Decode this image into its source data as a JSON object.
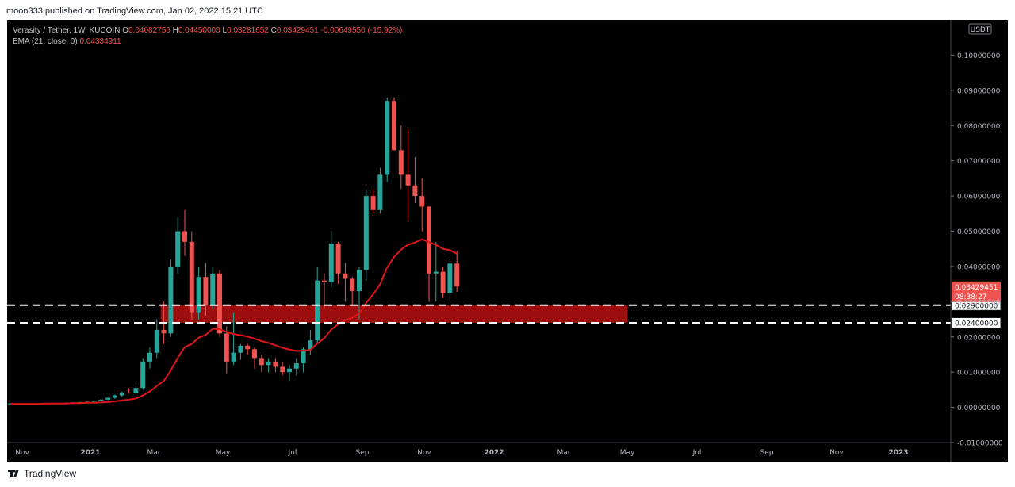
{
  "header": {
    "publisher_line": "moon333 published on TradingView.com, Jan 02, 2022 15:21 UTC"
  },
  "footer": {
    "brand": "TradingView"
  },
  "legend": {
    "symbol": "Verasity / Tether, 1W, KUCOIN",
    "o_label": "O",
    "o_value": "0.04082756",
    "h_label": "H",
    "h_value": "0.04450000",
    "l_label": "L",
    "l_value": "0.03281652",
    "c_label": "C",
    "c_value": "0.03429451",
    "change": "-0.00649550 (-15.92%)",
    "ema_label": "EMA (21, close, 0)",
    "ema_value": "0.04334911"
  },
  "colors": {
    "up": "#26a69a",
    "down": "#ef5350",
    "ema": "#e0151c",
    "zone": "#a50f0f",
    "background": "#000000"
  },
  "chart_data": {
    "type": "candlestick",
    "currency": "USDT",
    "y_axis": {
      "min": -0.01,
      "max": 0.11,
      "ticks": [
        "0.10000000",
        "0.09000000",
        "0.08000000",
        "0.07000000",
        "0.06000000",
        "0.05000000",
        "0.04000000",
        "0.03000000",
        "0.02000000",
        "0.01000000",
        "0.00000000",
        "-0.01000000"
      ]
    },
    "x_axis": {
      "ticks": [
        "Nov",
        "2021",
        "Mar",
        "May",
        "Jul",
        "Sep",
        "Nov",
        "2022",
        "Mar",
        "May",
        "Jul",
        "Sep",
        "Nov",
        "2023"
      ],
      "bold_ticks": [
        "2021",
        "2022",
        "2023"
      ]
    },
    "last_price": {
      "value": "0.03429451",
      "countdown": "08:38:27"
    },
    "levels": [
      {
        "value": 0.029,
        "label": "0.02900000"
      },
      {
        "value": 0.024,
        "label": "0.02400000"
      }
    ],
    "zone": {
      "low": 0.024,
      "high": 0.029,
      "start_week": 22,
      "end_week": 88
    },
    "candles": [
      {
        "o": 0.001,
        "h": 0.0012,
        "l": 0.0009,
        "c": 0.0011
      },
      {
        "o": 0.0011,
        "h": 0.0012,
        "l": 0.0009,
        "c": 0.001
      },
      {
        "o": 0.001,
        "h": 0.0012,
        "l": 0.0009,
        "c": 0.0011
      },
      {
        "o": 0.0011,
        "h": 0.0012,
        "l": 0.001,
        "c": 0.001
      },
      {
        "o": 0.001,
        "h": 0.0012,
        "l": 0.0009,
        "c": 0.0011
      },
      {
        "o": 0.0011,
        "h": 0.0013,
        "l": 0.001,
        "c": 0.0012
      },
      {
        "o": 0.0012,
        "h": 0.0013,
        "l": 0.001,
        "c": 0.0011
      },
      {
        "o": 0.0011,
        "h": 0.0013,
        "l": 0.001,
        "c": 0.0012
      },
      {
        "o": 0.0012,
        "h": 0.0014,
        "l": 0.0011,
        "c": 0.0013
      },
      {
        "o": 0.0013,
        "h": 0.0015,
        "l": 0.0011,
        "c": 0.0014
      },
      {
        "o": 0.0014,
        "h": 0.0016,
        "l": 0.0012,
        "c": 0.0015
      },
      {
        "o": 0.0015,
        "h": 0.0018,
        "l": 0.0013,
        "c": 0.0016
      },
      {
        "o": 0.0016,
        "h": 0.002,
        "l": 0.0014,
        "c": 0.0019
      },
      {
        "o": 0.0019,
        "h": 0.0024,
        "l": 0.0017,
        "c": 0.0022
      },
      {
        "o": 0.0022,
        "h": 0.0028,
        "l": 0.002,
        "c": 0.0027
      },
      {
        "o": 0.0027,
        "h": 0.0036,
        "l": 0.0024,
        "c": 0.0034
      },
      {
        "o": 0.0034,
        "h": 0.0045,
        "l": 0.003,
        "c": 0.0042
      },
      {
        "o": 0.0042,
        "h": 0.0055,
        "l": 0.0038,
        "c": 0.004
      },
      {
        "o": 0.004,
        "h": 0.006,
        "l": 0.0036,
        "c": 0.0055
      },
      {
        "o": 0.0055,
        "h": 0.014,
        "l": 0.005,
        "c": 0.013
      },
      {
        "o": 0.013,
        "h": 0.017,
        "l": 0.011,
        "c": 0.0155
      },
      {
        "o": 0.0155,
        "h": 0.025,
        "l": 0.014,
        "c": 0.022
      },
      {
        "o": 0.022,
        "h": 0.03,
        "l": 0.018,
        "c": 0.021
      },
      {
        "o": 0.021,
        "h": 0.042,
        "l": 0.02,
        "c": 0.04
      },
      {
        "o": 0.04,
        "h": 0.054,
        "l": 0.038,
        "c": 0.05
      },
      {
        "o": 0.05,
        "h": 0.056,
        "l": 0.043,
        "c": 0.047
      },
      {
        "o": 0.047,
        "h": 0.05,
        "l": 0.025,
        "c": 0.027
      },
      {
        "o": 0.027,
        "h": 0.04,
        "l": 0.025,
        "c": 0.037
      },
      {
        "o": 0.037,
        "h": 0.041,
        "l": 0.026,
        "c": 0.029
      },
      {
        "o": 0.029,
        "h": 0.04,
        "l": 0.028,
        "c": 0.038
      },
      {
        "o": 0.038,
        "h": 0.039,
        "l": 0.02,
        "c": 0.021
      },
      {
        "o": 0.021,
        "h": 0.023,
        "l": 0.0095,
        "c": 0.013
      },
      {
        "o": 0.013,
        "h": 0.027,
        "l": 0.012,
        "c": 0.0155
      },
      {
        "o": 0.0155,
        "h": 0.018,
        "l": 0.0135,
        "c": 0.0175
      },
      {
        "o": 0.0175,
        "h": 0.018,
        "l": 0.015,
        "c": 0.0165
      },
      {
        "o": 0.0165,
        "h": 0.017,
        "l": 0.011,
        "c": 0.014
      },
      {
        "o": 0.014,
        "h": 0.015,
        "l": 0.01,
        "c": 0.012
      },
      {
        "o": 0.012,
        "h": 0.014,
        "l": 0.01,
        "c": 0.013
      },
      {
        "o": 0.013,
        "h": 0.014,
        "l": 0.01,
        "c": 0.0115
      },
      {
        "o": 0.0115,
        "h": 0.013,
        "l": 0.009,
        "c": 0.01
      },
      {
        "o": 0.01,
        "h": 0.012,
        "l": 0.0075,
        "c": 0.011
      },
      {
        "o": 0.011,
        "h": 0.014,
        "l": 0.009,
        "c": 0.0125
      },
      {
        "o": 0.0125,
        "h": 0.017,
        "l": 0.01,
        "c": 0.0165
      },
      {
        "o": 0.0165,
        "h": 0.022,
        "l": 0.015,
        "c": 0.019
      },
      {
        "o": 0.019,
        "h": 0.04,
        "l": 0.018,
        "c": 0.036
      },
      {
        "o": 0.036,
        "h": 0.038,
        "l": 0.028,
        "c": 0.0355
      },
      {
        "o": 0.0355,
        "h": 0.05,
        "l": 0.034,
        "c": 0.0465
      },
      {
        "o": 0.0465,
        "h": 0.047,
        "l": 0.035,
        "c": 0.038
      },
      {
        "o": 0.038,
        "h": 0.041,
        "l": 0.03,
        "c": 0.0365
      },
      {
        "o": 0.0365,
        "h": 0.037,
        "l": 0.029,
        "c": 0.033
      },
      {
        "o": 0.033,
        "h": 0.04,
        "l": 0.025,
        "c": 0.039
      },
      {
        "o": 0.039,
        "h": 0.062,
        "l": 0.036,
        "c": 0.06
      },
      {
        "o": 0.06,
        "h": 0.062,
        "l": 0.055,
        "c": 0.056
      },
      {
        "o": 0.056,
        "h": 0.068,
        "l": 0.055,
        "c": 0.066
      },
      {
        "o": 0.066,
        "h": 0.088,
        "l": 0.064,
        "c": 0.087
      },
      {
        "o": 0.087,
        "h": 0.088,
        "l": 0.073,
        "c": 0.073
      },
      {
        "o": 0.073,
        "h": 0.08,
        "l": 0.062,
        "c": 0.066
      },
      {
        "o": 0.066,
        "h": 0.079,
        "l": 0.053,
        "c": 0.063
      },
      {
        "o": 0.063,
        "h": 0.071,
        "l": 0.058,
        "c": 0.06
      },
      {
        "o": 0.06,
        "h": 0.065,
        "l": 0.05,
        "c": 0.057
      },
      {
        "o": 0.057,
        "h": 0.057,
        "l": 0.03,
        "c": 0.038
      },
      {
        "o": 0.038,
        "h": 0.047,
        "l": 0.03,
        "c": 0.0385
      },
      {
        "o": 0.0385,
        "h": 0.04,
        "l": 0.031,
        "c": 0.0325
      },
      {
        "o": 0.0325,
        "h": 0.042,
        "l": 0.03,
        "c": 0.0408
      },
      {
        "o": 0.0408,
        "h": 0.0445,
        "l": 0.0328,
        "c": 0.0343
      }
    ],
    "ema": [
      0.001,
      0.001,
      0.001,
      0.001,
      0.001,
      0.0011,
      0.0011,
      0.0011,
      0.0011,
      0.0012,
      0.0012,
      0.0013,
      0.0013,
      0.0014,
      0.0015,
      0.0017,
      0.002,
      0.0022,
      0.0025,
      0.0034,
      0.0045,
      0.0061,
      0.0075,
      0.0105,
      0.0141,
      0.0171,
      0.018,
      0.0198,
      0.0206,
      0.0223,
      0.0222,
      0.0214,
      0.0208,
      0.0205,
      0.0201,
      0.0195,
      0.0188,
      0.0183,
      0.0176,
      0.0169,
      0.0164,
      0.016,
      0.0161,
      0.0163,
      0.0181,
      0.0197,
      0.0221,
      0.0236,
      0.0247,
      0.0254,
      0.0267,
      0.0297,
      0.0321,
      0.035,
      0.0397,
      0.0427,
      0.0448,
      0.0462,
      0.0468,
      0.0477,
      0.0469,
      0.0461,
      0.045,
      0.0446,
      0.0436
    ]
  }
}
